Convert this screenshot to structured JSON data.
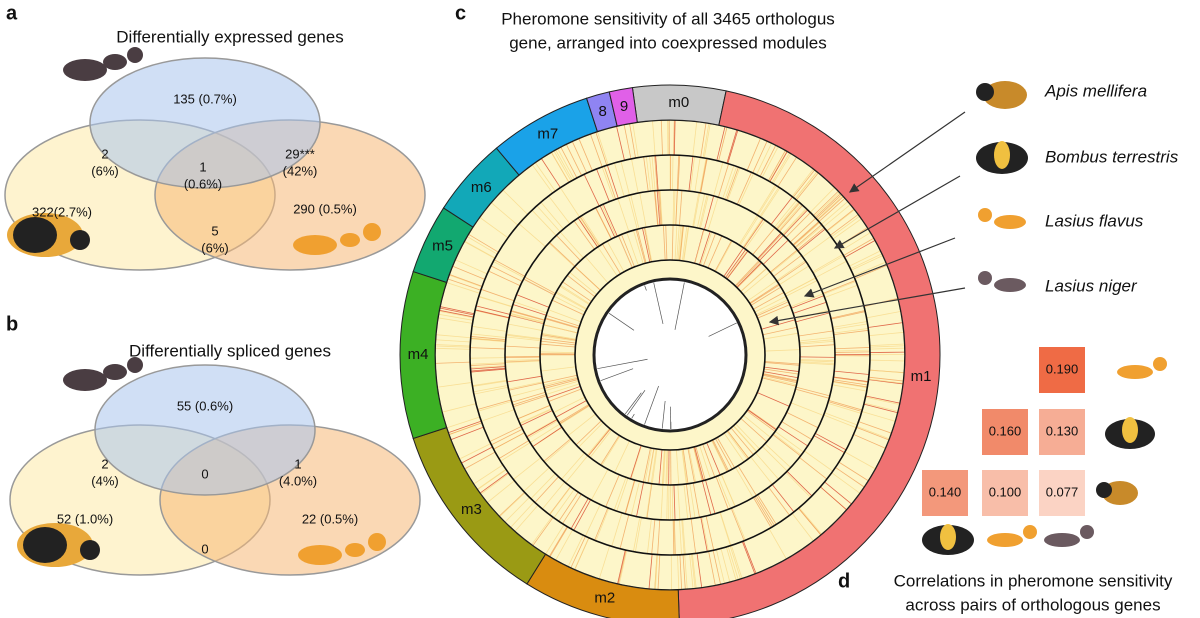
{
  "panels": {
    "a": {
      "label": "a",
      "title": "Differentially expressed genes",
      "regions": {
        "top": [
          "135 (0.7%)"
        ],
        "top_left": [
          "2",
          "(6%)"
        ],
        "center": [
          "1",
          "(0.6%)"
        ],
        "top_right": [
          "29***",
          "(42%)"
        ],
        "left": [
          "322(2.7%)"
        ],
        "bottom": [
          "5",
          "(6%)"
        ],
        "right": [
          "290 (0.5%)"
        ]
      }
    },
    "b": {
      "label": "b",
      "title": "Differentially spliced genes",
      "regions": {
        "top": [
          "55 (0.6%)"
        ],
        "top_left": [
          "2",
          "(4%)"
        ],
        "center": [
          "0"
        ],
        "top_right": [
          "1",
          "(4.0%)"
        ],
        "left": [
          "52 (1.0%)"
        ],
        "bottom": [
          "0"
        ],
        "right": [
          "22 (0.5%)"
        ]
      }
    },
    "c": {
      "label": "c",
      "title": [
        "Pheromone sensitivity of all 3465 orthologus",
        "gene, arranged into coexpressed modules"
      ],
      "modules": [
        "m0",
        "m1",
        "m2",
        "m3",
        "m4",
        "m5",
        "m6",
        "m7",
        "8",
        "9"
      ],
      "species": [
        "Apis mellifera",
        "Bombus terrestris",
        "Lasius flavus",
        "Lasius niger"
      ]
    },
    "d": {
      "label": "d",
      "caption": [
        "Correlations in pheromone sensitivity",
        "across pairs of orthologous genes"
      ],
      "cells": [
        [
          "0.190"
        ],
        [
          "0.160",
          "0.130"
        ],
        [
          "0.140",
          "0.100",
          "0.077"
        ]
      ]
    }
  }
}
